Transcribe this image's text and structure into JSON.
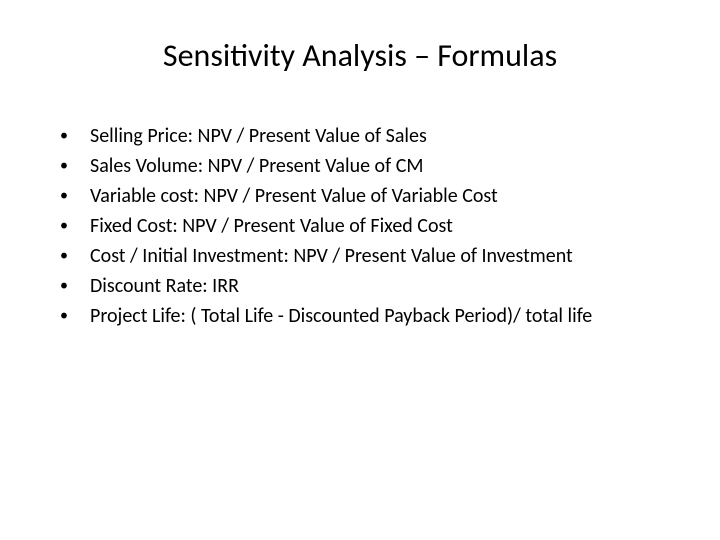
{
  "slide": {
    "title": "Sensitivity Analysis – Formulas",
    "title_fontsize": 32,
    "title_color": "#000000",
    "background_color": "#ffffff",
    "bullet_marker": "•",
    "bullet_color": "#000000",
    "text_fontsize": 20,
    "text_color": "#000000",
    "items": [
      "Selling Price: NPV / Present Value of Sales",
      "Sales Volume: NPV / Present Value of CM",
      "Variable cost: NPV / Present Value of Variable Cost",
      "Fixed Cost: NPV / Present Value of Fixed Cost",
      "Cost / Initial Investment: NPV / Present Value of Investment",
      "Discount Rate: IRR",
      "Project Life: ( Total Life - Discounted Payback Period)/ total life"
    ]
  }
}
